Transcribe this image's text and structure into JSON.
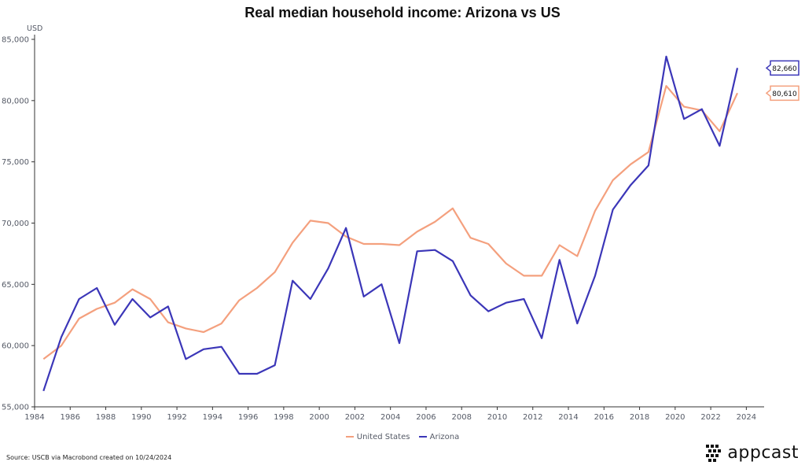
{
  "colors": {
    "us": "#f4a07e",
    "arizona": "#3b36b8",
    "axis": "#333333"
  },
  "chart_data": {
    "type": "line",
    "title": "Real median household income: Arizona vs US",
    "ylabel": "USD",
    "xlabel": "",
    "xlim": [
      1984,
      2025
    ],
    "ylim": [
      55000,
      85000
    ],
    "x_ticks": [
      1984,
      1986,
      1988,
      1990,
      1992,
      1994,
      1996,
      1998,
      2000,
      2002,
      2004,
      2006,
      2008,
      2010,
      2012,
      2014,
      2016,
      2018,
      2020,
      2022,
      2024
    ],
    "y_ticks": [
      55000,
      60000,
      65000,
      70000,
      75000,
      80000,
      85000
    ],
    "y_tick_labels": [
      "55,000",
      "60,000",
      "65,000",
      "70,000",
      "75,000",
      "80,000",
      "85,000"
    ],
    "x": [
      1984.5,
      1985.5,
      1986.5,
      1987.5,
      1988.5,
      1989.5,
      1990.5,
      1991.5,
      1992.5,
      1993.5,
      1994.5,
      1995.5,
      1996.5,
      1997.5,
      1998.5,
      1999.5,
      2000.5,
      2001.5,
      2002.5,
      2003.5,
      2004.5,
      2005.5,
      2006.5,
      2007.5,
      2008.5,
      2009.5,
      2010.5,
      2011.5,
      2012.5,
      2013.5,
      2014.5,
      2015.5,
      2016.5,
      2017.5,
      2018.5,
      2019.5,
      2020.5,
      2021.5,
      2022.5,
      2023.5
    ],
    "series": [
      {
        "name": "United States",
        "color": "#f4a07e",
        "values": [
          58900,
          60000,
          62200,
          63000,
          63500,
          64600,
          63800,
          61900,
          61400,
          61100,
          61800,
          63700,
          64700,
          66000,
          68400,
          70200,
          70000,
          68900,
          68300,
          68300,
          68200,
          69300,
          70100,
          71200,
          68800,
          68300,
          66700,
          65700,
          65700,
          68200,
          67300,
          71000,
          73500,
          74800,
          75800,
          81200,
          79500,
          79200,
          77500,
          80610
        ]
      },
      {
        "name": "Arizona",
        "color": "#3b36b8",
        "values": [
          56300,
          60700,
          63800,
          64700,
          61700,
          63800,
          62300,
          63200,
          58900,
          59700,
          59900,
          57700,
          57700,
          58400,
          65300,
          63800,
          66300,
          69600,
          64000,
          65000,
          60200,
          67700,
          67800,
          66900,
          64100,
          62800,
          63500,
          63800,
          60600,
          67000,
          61800,
          65700,
          71100,
          73100,
          74700,
          83600,
          78500,
          79300,
          76300,
          82660
        ]
      }
    ],
    "end_labels": [
      {
        "series": "Arizona",
        "text": "82,660"
      },
      {
        "series": "United States",
        "text": "80,610"
      }
    ],
    "legend": [
      "United States",
      "Arizona"
    ],
    "legend_position": "bottom-center",
    "grid": false
  },
  "footer": {
    "source": "Source: USCB via Macrobond created on 10/24/2024",
    "brand": "appcast"
  }
}
